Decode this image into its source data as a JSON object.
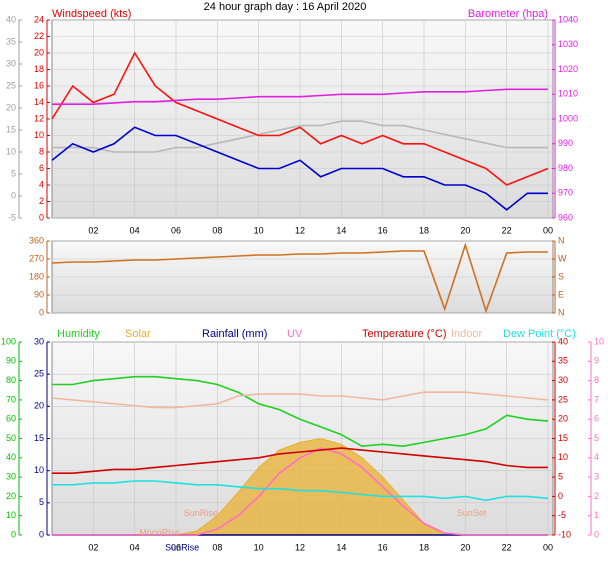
{
  "chart_data": [
    {
      "type": "line",
      "title": "24 hour graph day : 16 April 2020",
      "y_label": "Windspeed (kts)",
      "y2_label": "Barometer (hpa)",
      "y_color": "#e00000",
      "y2_color": "#e020e0",
      "y3_color": "#a0a0a0",
      "x": [
        0,
        1,
        2,
        3,
        4,
        5,
        6,
        7,
        8,
        9,
        10,
        11,
        12,
        13,
        14,
        15,
        16,
        17,
        18,
        19,
        20,
        21,
        22,
        23,
        24
      ],
      "xlim": [
        0,
        24
      ],
      "xticks": [
        {
          "value": 2,
          "label": "02"
        },
        {
          "value": 4,
          "label": "04"
        },
        {
          "value": 6,
          "label": "06"
        },
        {
          "value": 8,
          "label": "08"
        },
        10,
        12,
        14,
        16,
        18,
        20,
        22,
        {
          "value": 24,
          "label": "00"
        }
      ],
      "ylim": [
        0,
        24
      ],
      "yticks": [
        0,
        2,
        4,
        6,
        8,
        10,
        12,
        14,
        16,
        18,
        20,
        22,
        24
      ],
      "y2lim": [
        960,
        1040
      ],
      "y2ticks": [
        960,
        970,
        980,
        990,
        1000,
        1010,
        1020,
        1030,
        1040
      ],
      "y3lim": [
        -5,
        40
      ],
      "y3ticks": [
        -5,
        0,
        5,
        10,
        15,
        20,
        25,
        30,
        35,
        40
      ],
      "grid": true,
      "series": [
        {
          "color": "#b8b8b8",
          "axis": "y3",
          "values": [
            11,
            11,
            11,
            10,
            10,
            10,
            11,
            11,
            12,
            13,
            14,
            15,
            16,
            16,
            17,
            17,
            16,
            16,
            15,
            14,
            13,
            12,
            11,
            11,
            11
          ]
        },
        {
          "color": "#ff1010",
          "axis": "y",
          "values": [
            12,
            16,
            14,
            15,
            20,
            16,
            14,
            13,
            12,
            11,
            10,
            10,
            11,
            9,
            10,
            9,
            10,
            9,
            9,
            8,
            7,
            6,
            4,
            5,
            6
          ]
        },
        {
          "color": "#0000d0",
          "axis": "y",
          "values": [
            7,
            9,
            8,
            9,
            11,
            10,
            10,
            9,
            8,
            7,
            6,
            6,
            7,
            5,
            6,
            6,
            6,
            5,
            5,
            4,
            4,
            3,
            1,
            3,
            3
          ]
        },
        {
          "color": "#e020e0",
          "axis": "y2",
          "values": [
            1006,
            1006,
            1006,
            1006.5,
            1007,
            1007,
            1007.5,
            1008,
            1008,
            1008.5,
            1009,
            1009,
            1009,
            1009.5,
            1010,
            1010,
            1010,
            1010.5,
            1011,
            1011,
            1011,
            1011.5,
            1012,
            1012,
            1012
          ]
        }
      ]
    },
    {
      "type": "line",
      "y_color": "#c06020",
      "y2_color": "#c06020",
      "x": [
        0,
        1,
        2,
        3,
        4,
        5,
        6,
        7,
        8,
        9,
        10,
        11,
        12,
        13,
        14,
        15,
        16,
        17,
        18,
        19,
        20,
        21,
        22,
        23,
        24
      ],
      "xlim": [
        0,
        24
      ],
      "ylim": [
        0,
        360
      ],
      "yticks": [
        0,
        90,
        180,
        270,
        360
      ],
      "y2lim": [
        0,
        360
      ],
      "y2ticks": [
        {
          "value": 0,
          "label": "N"
        },
        {
          "value": 90,
          "label": "E"
        },
        {
          "value": 180,
          "label": "S"
        },
        {
          "value": 270,
          "label": "W"
        },
        {
          "value": 360,
          "label": "N"
        }
      ],
      "grid": true,
      "series": [
        {
          "color": "#d07020",
          "axis": "y",
          "values": [
            250,
            255,
            255,
            260,
            265,
            265,
            270,
            275,
            280,
            285,
            290,
            290,
            295,
            295,
            300,
            300,
            305,
            310,
            310,
            20,
            340,
            10,
            300,
            305,
            305
          ]
        }
      ]
    },
    {
      "type": "line",
      "y_color": "#000080",
      "y2_color": "#d00000",
      "y3_color": "#00c000",
      "y4_color": "#ff70c0",
      "x": [
        0,
        1,
        2,
        3,
        4,
        5,
        6,
        7,
        8,
        9,
        10,
        11,
        12,
        13,
        14,
        15,
        16,
        17,
        18,
        19,
        20,
        21,
        22,
        23,
        24
      ],
      "xlim": [
        0,
        24
      ],
      "xticks": [
        {
          "value": 2,
          "label": "02"
        },
        {
          "value": 4,
          "label": "04"
        },
        {
          "value": 6,
          "label": "06"
        },
        {
          "value": 8,
          "label": "08"
        },
        10,
        12,
        14,
        16,
        18,
        20,
        22,
        {
          "value": 24,
          "label": "00"
        }
      ],
      "ylim": [
        0,
        30
      ],
      "yticks": [
        0,
        5,
        10,
        15,
        20,
        25,
        30
      ],
      "y2lim": [
        -10,
        40
      ],
      "y2ticks": [
        -10,
        -5,
        0,
        5,
        10,
        15,
        20,
        25,
        30,
        35,
        40
      ],
      "y3lim": [
        0,
        100
      ],
      "y3ticks": [
        0,
        10,
        20,
        30,
        40,
        50,
        60,
        70,
        80,
        90,
        100
      ],
      "y4lim": [
        0,
        10
      ],
      "y4ticks": [
        0,
        1,
        2,
        3,
        4,
        5,
        6,
        7,
        8,
        9,
        10
      ],
      "grid": true,
      "series": [
        {
          "name": "Humidity",
          "color": "#20d020",
          "axis": "y3",
          "values": [
            78,
            78,
            80,
            81,
            82,
            82,
            81,
            80,
            78,
            74,
            68,
            65,
            60,
            56,
            52,
            46,
            47,
            46,
            48,
            50,
            52,
            55,
            62,
            60,
            59
          ]
        },
        {
          "name": "Solar",
          "color": "#e8b030",
          "axis": "y3",
          "style": "area",
          "values": [
            0,
            0,
            0,
            0,
            0,
            0,
            0,
            2,
            10,
            22,
            35,
            44,
            48,
            50,
            47,
            40,
            30,
            18,
            6,
            0,
            0,
            0,
            0,
            0,
            0
          ]
        },
        {
          "name": "Rainfall (mm)",
          "color": "#000080",
          "axis": "y",
          "values": [
            0,
            0,
            0,
            0,
            0,
            0,
            0,
            0,
            0,
            0,
            0,
            0,
            0,
            0,
            0,
            0,
            0,
            0,
            0,
            0,
            0,
            0,
            0,
            0,
            0
          ]
        },
        {
          "name": "UV",
          "color": "#ff70c0",
          "axis": "y4",
          "values": [
            0,
            0,
            0,
            0,
            0,
            0,
            0,
            0,
            0.3,
            1,
            2,
            3.2,
            4,
            4.5,
            4.2,
            3.5,
            2.5,
            1.5,
            0.6,
            0.1,
            0,
            0,
            0,
            0,
            0
          ]
        },
        {
          "name": "Temperature (°C)",
          "color": "#d00000",
          "axis": "y2",
          "values": [
            6,
            6,
            6.5,
            7,
            7,
            7.5,
            8,
            8.5,
            9,
            9.5,
            10,
            11,
            11.5,
            12,
            12.5,
            12,
            11.5,
            11,
            10.5,
            10,
            9.5,
            9,
            8,
            7.5,
            7.5
          ]
        },
        {
          "name": "Indoor",
          "color": "#f0b8a0",
          "axis": "y2",
          "values": [
            25.5,
            25,
            24.5,
            24,
            23.5,
            23,
            23,
            23.5,
            24,
            26,
            26.5,
            26.5,
            26.5,
            26,
            26,
            25.5,
            25,
            26,
            27,
            27,
            27,
            26.5,
            26,
            25.5,
            25
          ]
        },
        {
          "name": "Dew Point (°C)",
          "color": "#20e0e0",
          "axis": "y2",
          "values": [
            3,
            3,
            3.5,
            3.5,
            4,
            4,
            3.5,
            3,
            3,
            2.5,
            2,
            2,
            1.5,
            1.5,
            1,
            0.5,
            0,
            0,
            0,
            -0.5,
            0,
            -1,
            0,
            0,
            -0.5
          ]
        }
      ],
      "annotations": [
        {
          "text": "SunRise",
          "x": 7.2,
          "y": 11
        },
        {
          "text": "SunSet",
          "x": 20.3,
          "y": 11
        },
        {
          "text": "MoonRise",
          "x": 5.2,
          "y": 1
        }
      ],
      "x_events": [
        {
          "label": "SunRise",
          "value": 6.3
        }
      ]
    }
  ]
}
